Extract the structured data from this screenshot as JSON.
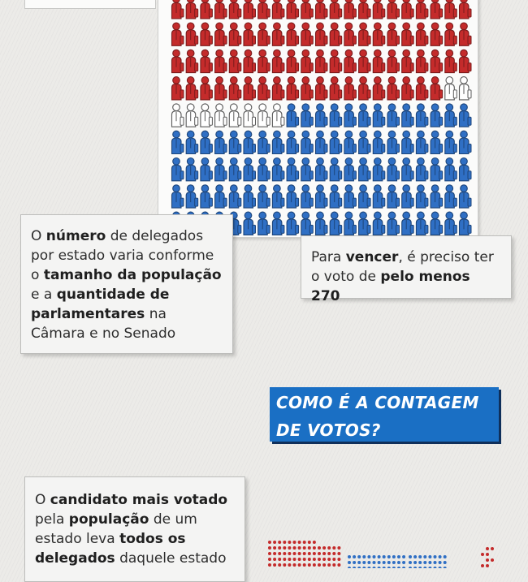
{
  "colors": {
    "red": "#c42b2b",
    "blue": "#2f6fc4",
    "white": "#ffffff",
    "headline_bg": "#1a6fc4"
  },
  "icons": {
    "delegate": "delegate-figure-icon"
  },
  "delegate_chart": {
    "columns": 21,
    "rows": 9,
    "red_count": 82,
    "white_count": 10,
    "blue_count": 97
  },
  "note_population": {
    "p1": "O ",
    "b1": "número",
    "p2": " de delegados por estado varia conforme o ",
    "b2": "tamanho da população",
    "p3": " e a ",
    "b3": "quantidade de parlamentares",
    "p4": " na Câmara e no Senado"
  },
  "note_win": {
    "p1": "Para ",
    "b1": "vencer",
    "p2": ", é preciso ter o voto de ",
    "b2": "pelo menos 270"
  },
  "headline": {
    "line1": "COMO É A CONTAGEM",
    "line2": "DE VOTOS?"
  },
  "note_count": {
    "p1": "O ",
    "b1": "candidato mais votado",
    "p2": " pela ",
    "b2": "população",
    "p3": " de um estado leva ",
    "b3": "todos os delegados",
    "p4": " daquele estado"
  }
}
